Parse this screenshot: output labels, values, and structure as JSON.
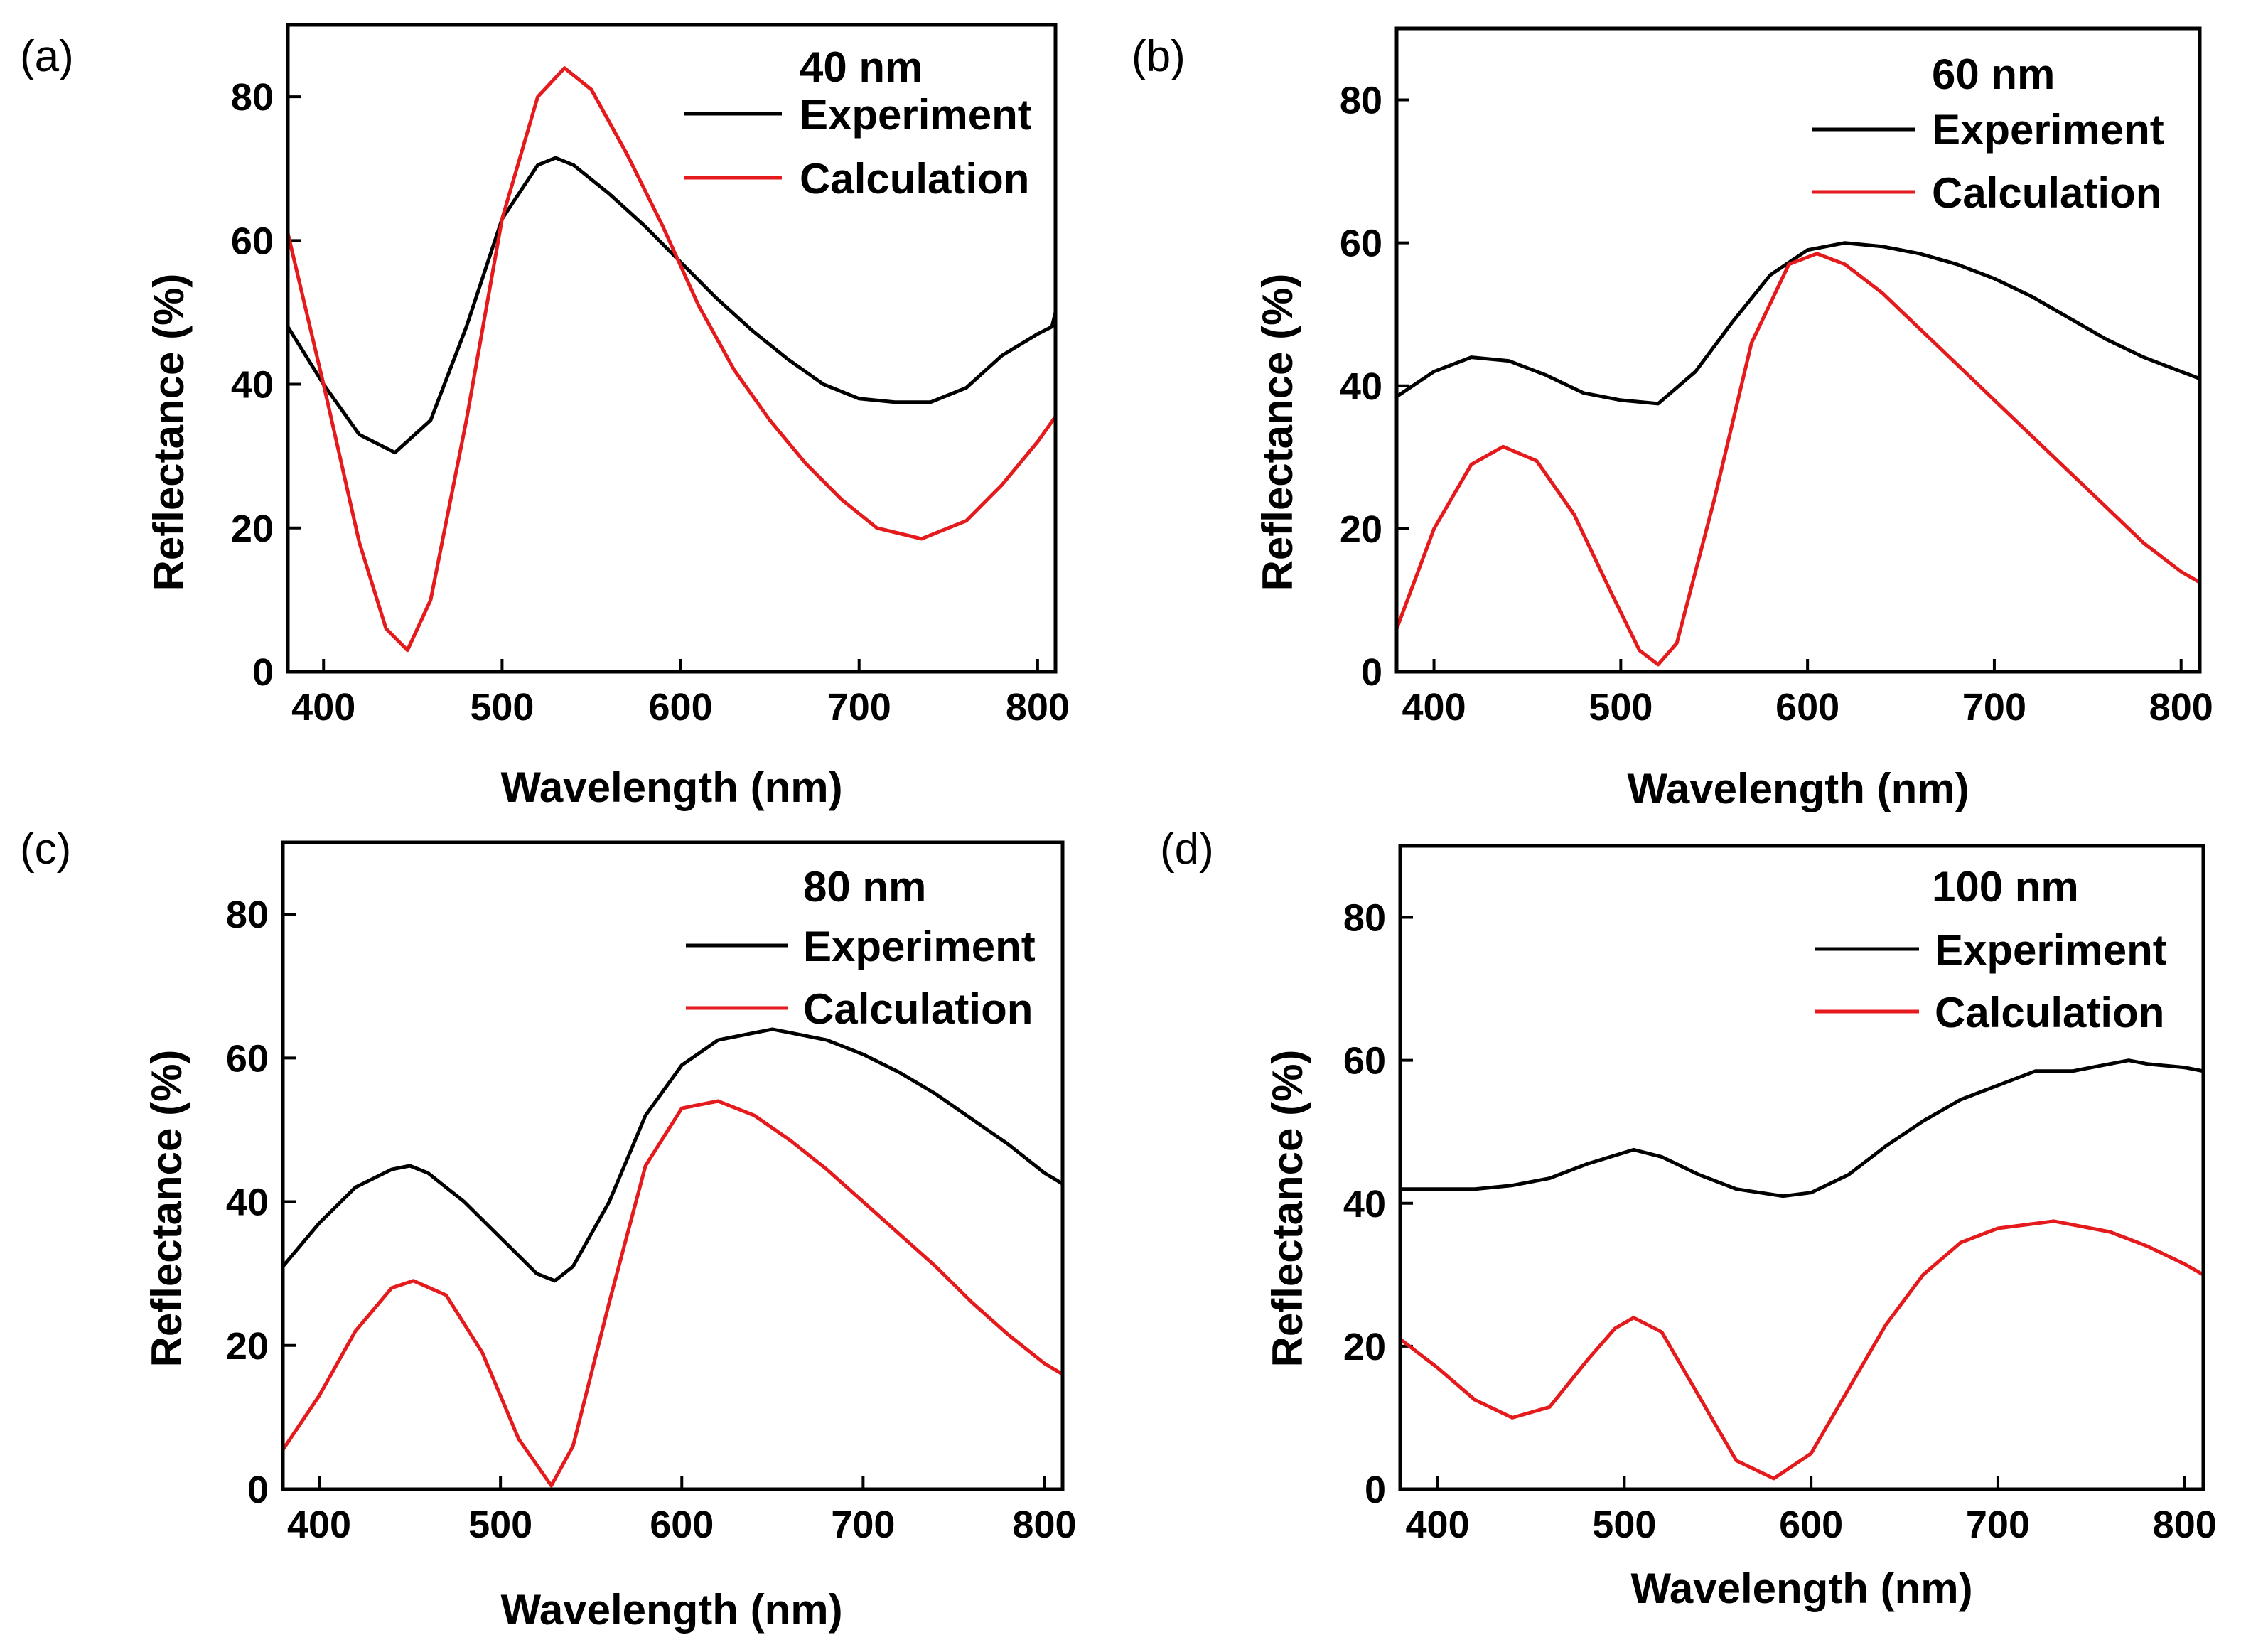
{
  "chart_data": [
    {
      "type": "line",
      "panel_label": "(a)",
      "title": "40 nm",
      "xlabel": "Wavelength (nm)",
      "ylabel": "Reflectance (%)",
      "xlim": [
        380,
        810
      ],
      "ylim": [
        0,
        90
      ],
      "xticks": [
        400,
        500,
        600,
        700,
        800
      ],
      "yticks": [
        0,
        20,
        40,
        60,
        80
      ],
      "legend_position": "top-right",
      "series": [
        {
          "name": "Experiment",
          "color": "#000000",
          "x": [
            380,
            400,
            420,
            440,
            460,
            480,
            500,
            520,
            530,
            540,
            560,
            580,
            600,
            620,
            640,
            660,
            680,
            700,
            720,
            740,
            760,
            780,
            800,
            808,
            810
          ],
          "y": [
            48,
            40,
            33,
            30.5,
            35,
            48,
            63,
            70.5,
            71.5,
            70.5,
            66.5,
            62,
            57,
            52,
            47.5,
            43.5,
            40,
            38,
            37.5,
            37.5,
            39.5,
            44,
            47,
            48,
            50
          ]
        },
        {
          "name": "Calculation",
          "color": "#e41a1c",
          "x": [
            380,
            400,
            420,
            435,
            447,
            460,
            480,
            500,
            520,
            535,
            550,
            570,
            590,
            610,
            630,
            650,
            670,
            690,
            710,
            735,
            760,
            780,
            800,
            810
          ],
          "y": [
            61,
            40,
            18,
            6,
            3,
            10,
            35,
            63,
            80,
            84,
            81,
            72,
            62,
            51,
            42,
            35,
            29,
            24,
            20,
            18.5,
            21,
            26,
            32,
            35.5
          ]
        }
      ]
    },
    {
      "type": "line",
      "panel_label": "(b)",
      "title": "60 nm",
      "xlabel": "Wavelength (nm)",
      "ylabel": "Reflectance (%)",
      "xlim": [
        380,
        810
      ],
      "ylim": [
        0,
        90
      ],
      "xticks": [
        400,
        500,
        600,
        700,
        800
      ],
      "yticks": [
        0,
        20,
        40,
        60,
        80
      ],
      "legend_position": "top-right",
      "series": [
        {
          "name": "Experiment",
          "color": "#000000",
          "x": [
            380,
            400,
            420,
            440,
            460,
            480,
            500,
            520,
            540,
            560,
            580,
            600,
            620,
            640,
            660,
            680,
            700,
            720,
            740,
            760,
            780,
            800,
            810
          ],
          "y": [
            38.5,
            42,
            44,
            43.5,
            41.5,
            39,
            38,
            37.5,
            42,
            49,
            55.5,
            59,
            60,
            59.5,
            58.5,
            57,
            55,
            52.5,
            49.5,
            46.5,
            44,
            42,
            41
          ]
        },
        {
          "name": "Calculation",
          "color": "#e41a1c",
          "x": [
            380,
            400,
            420,
            437,
            455,
            475,
            495,
            510,
            520,
            530,
            550,
            570,
            590,
            605,
            620,
            640,
            660,
            680,
            700,
            720,
            740,
            760,
            780,
            800,
            810
          ],
          "y": [
            6,
            20,
            29,
            31.5,
            29.5,
            22,
            11,
            3,
            1,
            4,
            24,
            46,
            57,
            58.5,
            57,
            53,
            48,
            43,
            38,
            33,
            28,
            23,
            18,
            14,
            12.5
          ]
        }
      ]
    },
    {
      "type": "line",
      "panel_label": "(c)",
      "title": "80 nm",
      "xlabel": "Wavelength (nm)",
      "ylabel": "Reflectance (%)",
      "xlim": [
        380,
        810
      ],
      "ylim": [
        0,
        90
      ],
      "xticks": [
        400,
        500,
        600,
        700,
        800
      ],
      "yticks": [
        0,
        20,
        40,
        60,
        80
      ],
      "legend_position": "top-right",
      "series": [
        {
          "name": "Experiment",
          "color": "#000000",
          "x": [
            380,
            400,
            420,
            440,
            450,
            460,
            480,
            500,
            520,
            530,
            540,
            560,
            580,
            600,
            620,
            640,
            650,
            660,
            680,
            700,
            720,
            740,
            760,
            780,
            800,
            810
          ],
          "y": [
            31,
            37,
            42,
            44.5,
            45,
            44,
            40,
            35,
            30,
            29,
            31,
            40,
            52,
            59,
            62.5,
            63.5,
            64,
            63.5,
            62.5,
            60.5,
            58,
            55,
            51.5,
            48,
            44,
            42.5
          ]
        },
        {
          "name": "Calculation",
          "color": "#e41a1c",
          "x": [
            380,
            400,
            420,
            440,
            452,
            470,
            490,
            510,
            528,
            540,
            560,
            580,
            600,
            620,
            640,
            660,
            680,
            700,
            720,
            740,
            760,
            780,
            800,
            810
          ],
          "y": [
            5.5,
            13,
            22,
            28,
            29,
            27,
            19,
            7,
            0.5,
            6,
            26,
            45,
            53,
            54,
            52,
            48.5,
            44.5,
            40,
            35.5,
            31,
            26,
            21.5,
            17.5,
            16
          ]
        }
      ]
    },
    {
      "type": "line",
      "panel_label": "(d)",
      "title": "100 nm",
      "xlabel": "Wavelength (nm)",
      "ylabel": "Reflectance (%)",
      "xlim": [
        380,
        810
      ],
      "ylim": [
        0,
        90
      ],
      "xticks": [
        400,
        500,
        600,
        700,
        800
      ],
      "yticks": [
        0,
        20,
        40,
        60,
        80
      ],
      "legend_position": "top-right",
      "series": [
        {
          "name": "Experiment",
          "color": "#000000",
          "x": [
            380,
            400,
            420,
            440,
            460,
            480,
            505,
            520,
            540,
            560,
            585,
            600,
            620,
            640,
            660,
            680,
            700,
            720,
            740,
            760,
            770,
            780,
            800,
            810
          ],
          "y": [
            42,
            42,
            42,
            42.5,
            43.5,
            45.5,
            47.5,
            46.5,
            44,
            42,
            41,
            41.5,
            44,
            48,
            51.5,
            54.5,
            56.5,
            58.5,
            58.5,
            59.5,
            60,
            59.5,
            59,
            58.5
          ]
        },
        {
          "name": "Calculation",
          "color": "#e41a1c",
          "x": [
            380,
            400,
            420,
            440,
            460,
            480,
            495,
            505,
            520,
            540,
            560,
            580,
            600,
            620,
            640,
            660,
            680,
            700,
            730,
            760,
            780,
            800,
            810
          ],
          "y": [
            21,
            17,
            12.5,
            10,
            11.5,
            18,
            22.5,
            24,
            22,
            13,
            4,
            1.5,
            5,
            14,
            23,
            30,
            34.5,
            36.5,
            37.5,
            36,
            34,
            31.5,
            30
          ]
        }
      ]
    }
  ]
}
